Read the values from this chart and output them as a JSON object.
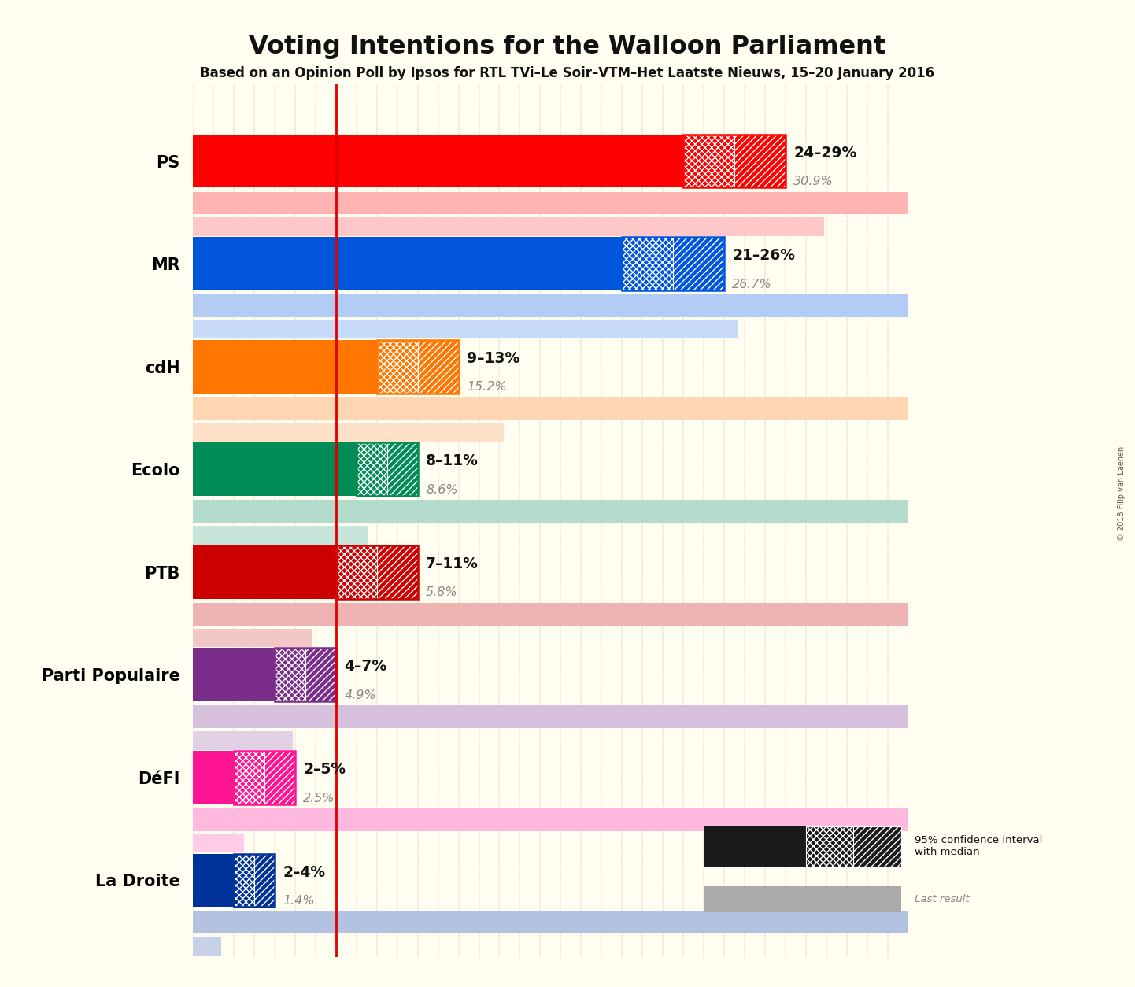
{
  "title": "Voting Intentions for the Walloon Parliament",
  "subtitle": "Based on an Opinion Poll by Ipsos for RTL TVi–Le Soir–VTM–Het Laatste Nieuws, 15–20 January 2016",
  "copyright": "© 2018 Filip van Laenen",
  "background_color": "#fffef0",
  "parties": [
    {
      "name": "PS",
      "color": "#FF0000",
      "median": 26.5,
      "low": 24,
      "high": 29,
      "last": 30.9,
      "label": "24–29%",
      "last_label": "30.9%"
    },
    {
      "name": "MR",
      "color": "#0055DD",
      "median": 23.5,
      "low": 21,
      "high": 26,
      "last": 26.7,
      "label": "21–26%",
      "last_label": "26.7%"
    },
    {
      "name": "cdH",
      "color": "#FF7700",
      "median": 11,
      "low": 9,
      "high": 13,
      "last": 15.2,
      "label": "9–13%",
      "last_label": "15.2%"
    },
    {
      "name": "Ecolo",
      "color": "#008B57",
      "median": 9.5,
      "low": 8,
      "high": 11,
      "last": 8.6,
      "label": "8–11%",
      "last_label": "8.6%"
    },
    {
      "name": "PTB",
      "color": "#CC0000",
      "median": 9,
      "low": 7,
      "high": 11,
      "last": 5.8,
      "label": "7–11%",
      "last_label": "5.8%"
    },
    {
      "name": "Parti Populaire",
      "color": "#7B2D8B",
      "median": 5.5,
      "low": 4,
      "high": 7,
      "last": 4.9,
      "label": "4–7%",
      "last_label": "4.9%"
    },
    {
      "name": "DéFI",
      "color": "#FF1493",
      "median": 3.5,
      "low": 2,
      "high": 5,
      "last": 2.5,
      "label": "2–5%",
      "last_label": "2.5%"
    },
    {
      "name": "La Droite",
      "color": "#003399",
      "median": 3,
      "low": 2,
      "high": 4,
      "last": 1.4,
      "label": "2–4%",
      "last_label": "1.4%"
    }
  ],
  "xlim": [
    0,
    35
  ],
  "red_line_x": 7,
  "label_color": "#111111",
  "last_label_color": "#888888"
}
